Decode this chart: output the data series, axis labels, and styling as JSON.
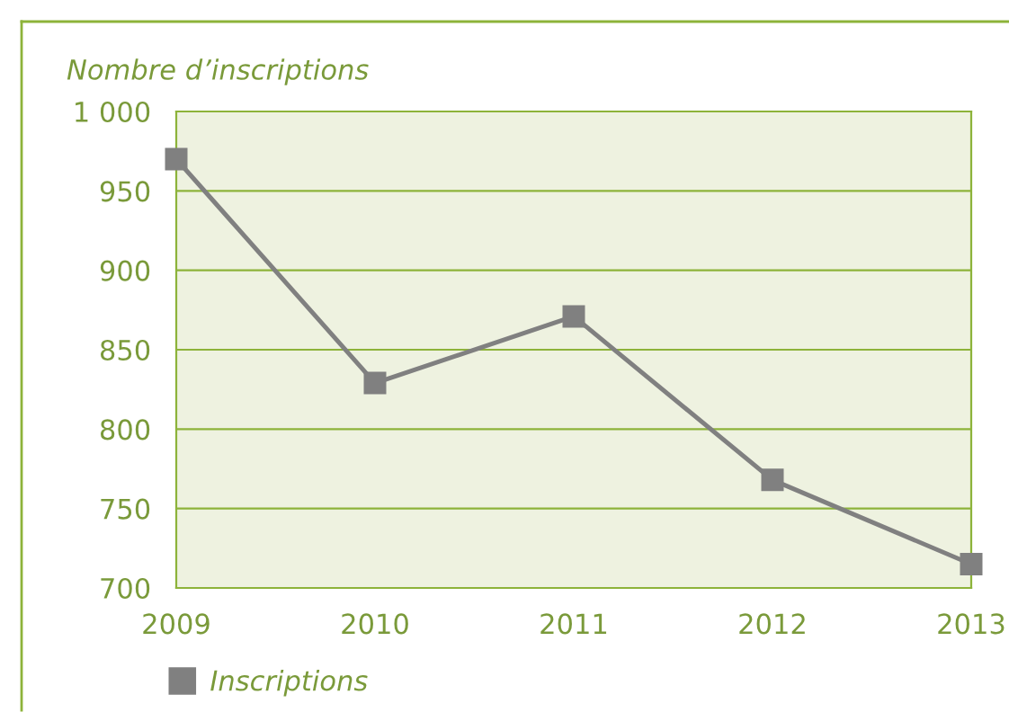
{
  "chart_data": {
    "type": "line",
    "ylabel": "Nombre d’inscriptions",
    "categories": [
      "2009",
      "2010",
      "2011",
      "2012",
      "2013"
    ],
    "series": [
      {
        "name": "Inscriptions",
        "color": "#808080",
        "values": [
          970,
          829,
          871,
          768,
          715
        ]
      }
    ],
    "ylim": [
      700,
      1000
    ],
    "yticks": [
      700,
      750,
      800,
      850,
      900,
      950,
      {
        "value": 1000,
        "label": "1 000"
      }
    ],
    "grid": "y",
    "legend": "bottom left",
    "marker": "square",
    "line_style": "solid"
  }
}
